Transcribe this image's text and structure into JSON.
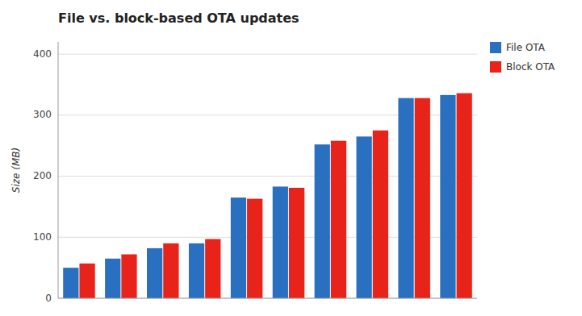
{
  "chart_data": {
    "type": "bar",
    "title": "File vs. block-based OTA updates",
    "ylabel": "Size (MB)",
    "categories": [
      null,
      null,
      null,
      null,
      null,
      null,
      null,
      null,
      null,
      null
    ],
    "series": [
      {
        "name": "File OTA",
        "color": "#2970c0",
        "values": [
          50,
          65,
          82,
          90,
          165,
          183,
          252,
          265,
          328,
          333
        ]
      },
      {
        "name": "Block OTA",
        "color": "#e8231a",
        "values": [
          57,
          72,
          90,
          97,
          163,
          181,
          258,
          275,
          328,
          336
        ]
      }
    ],
    "ylim": [
      0,
      420
    ],
    "yticks": [
      0,
      100,
      200,
      300,
      400
    ],
    "grid": true,
    "legend": "upper right",
    "tick_labels": "y"
  }
}
